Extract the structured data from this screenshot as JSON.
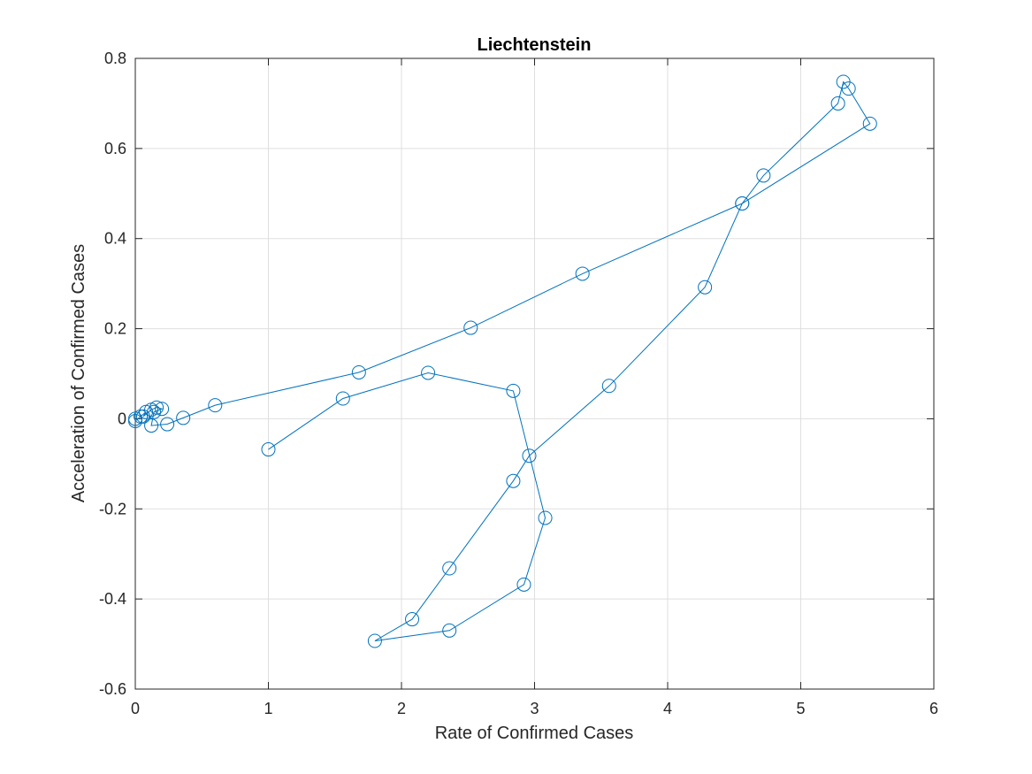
{
  "chart_data": {
    "type": "line",
    "title": "Liechtenstein",
    "xlabel": "Rate of Confirmed Cases",
    "ylabel": "Acceleration of Confirmed Cases",
    "xlim": [
      0,
      6
    ],
    "ylim": [
      -0.6,
      0.8
    ],
    "x_ticks": [
      0,
      1,
      2,
      3,
      4,
      5,
      6
    ],
    "y_ticks": [
      -0.6,
      -0.4,
      -0.2,
      0,
      0.2,
      0.4,
      0.6,
      0.8
    ],
    "x_tick_labels": [
      "0",
      "1",
      "2",
      "3",
      "4",
      "5",
      "6"
    ],
    "y_tick_labels": [
      "-0.6",
      "-0.4",
      "-0.2",
      "0",
      "0.2",
      "0.4",
      "0.6",
      "0.8"
    ],
    "grid": true,
    "marker": "circle",
    "color": "#0072BD",
    "series": [
      {
        "points": [
          [
            0.0,
            0.0
          ],
          [
            0.0,
            -0.005
          ],
          [
            0.04,
            0.005
          ],
          [
            0.08,
            0.015
          ],
          [
            0.06,
            0.005
          ],
          [
            0.12,
            0.02
          ],
          [
            0.16,
            0.025
          ],
          [
            0.2,
            0.022
          ],
          [
            0.14,
            0.015
          ],
          [
            0.12,
            -0.015
          ],
          [
            0.24,
            -0.012
          ],
          [
            0.36,
            0.002
          ],
          [
            0.6,
            0.03
          ],
          [
            1.68,
            0.103
          ],
          [
            2.52,
            0.202
          ],
          [
            3.36,
            0.322
          ],
          [
            4.56,
            0.478
          ],
          [
            5.52,
            0.655
          ],
          [
            5.36,
            0.733
          ],
          [
            5.32,
            0.748
          ],
          [
            5.28,
            0.7
          ],
          [
            4.72,
            0.54
          ],
          [
            4.56,
            0.478
          ],
          [
            4.28,
            0.292
          ],
          [
            3.56,
            0.073
          ],
          [
            2.96,
            -0.082
          ],
          [
            2.84,
            -0.138
          ],
          [
            2.36,
            -0.332
          ],
          [
            2.08,
            -0.445
          ],
          [
            1.8,
            -0.493
          ],
          [
            2.36,
            -0.47
          ],
          [
            2.92,
            -0.368
          ],
          [
            3.08,
            -0.22
          ],
          [
            2.84,
            0.062
          ],
          [
            2.2,
            0.102
          ],
          [
            1.56,
            0.045
          ],
          [
            1.0,
            -0.068
          ]
        ]
      }
    ]
  }
}
